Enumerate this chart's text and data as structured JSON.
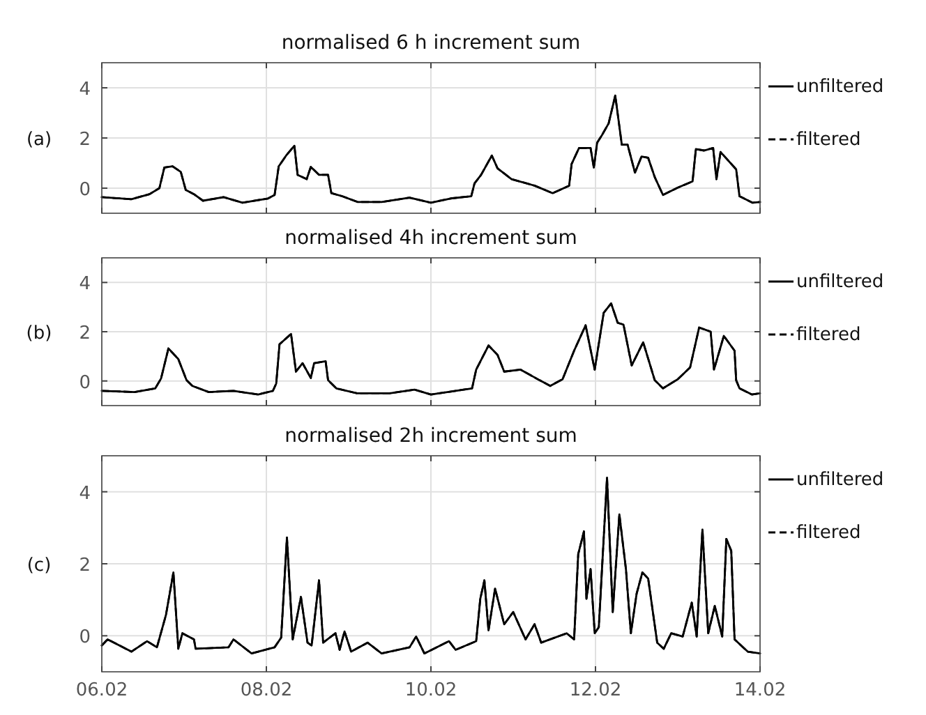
{
  "chart_data": [
    {
      "type": "line",
      "title": "normalised 6 h increment sum",
      "annotations": [
        "(a)"
      ],
      "xlim": [
        "--02-06",
        "--02-14"
      ],
      "xticks": [
        {
          "value": "--02-06",
          "label": null
        },
        {
          "value": "--02-08",
          "label": null
        },
        {
          "value": "--02-10",
          "label": null
        },
        {
          "value": "--02-12",
          "label": null
        },
        {
          "value": "--02-14",
          "label": null
        }
      ],
      "ylim": [
        -1,
        5
      ],
      "yticks": [
        0,
        2,
        4
      ],
      "grid": true,
      "legend": "right",
      "tick_labels": "y",
      "x": [
        "--02-06T00:00",
        "--02-06T08:38",
        "--02-06T13:55",
        "--02-06T16:48",
        "--02-06T18:14",
        "--02-06T20:38",
        "--02-06T23:02",
        "--02-07T00:29",
        "--02-07T02:53",
        "--02-07T05:31",
        "--02-07T11:31",
        "--02-07T17:02",
        "--02-08T00:29",
        "--02-08T02:24",
        "--02-08T03:36",
        "--02-08T05:46",
        "--02-08T08:10",
        "--02-08T09:07",
        "--02-08T11:46",
        "--02-08T12:58",
        "--02-08T15:22",
        "--02-08T18:00",
        "--02-08T18:58",
        "--02-08T22:05",
        "--02-09T02:38",
        "--02-09T09:36",
        "--02-09T17:46",
        "--02-10T00:00",
        "--02-10T05:46",
        "--02-10T11:46",
        "--02-10T12:43",
        "--02-10T14:38",
        "--02-10T17:46",
        "--02-10T19:26",
        "--02-10T23:31",
        "--02-11T06:14",
        "--02-11T11:31",
        "--02-11T16:19",
        "--02-11T17:02",
        "--02-11T19:12",
        "--02-11T22:34",
        "--02-11T23:31",
        "--02-12T00:29",
        "--02-12T01:55",
        "--02-12T03:50",
        "--02-12T05:46",
        "--02-12T07:41",
        "--02-12T09:22",
        "--02-12T11:31",
        "--02-12T13:26",
        "--02-12T15:22",
        "--02-12T17:17",
        "--02-12T19:41",
        "--02-13T00:00",
        "--02-13T04:19",
        "--02-13T05:17",
        "--02-13T07:41",
        "--02-13T10:19",
        "--02-13T11:17",
        "--02-13T12:29",
        "--02-13T17:02",
        "--02-13T18:00",
        "--02-13T21:50",
        "--02-14T00:00"
      ],
      "series": [
        {
          "name": "unfiltered",
          "color": "#000000",
          "line_style": "solid",
          "values": [
            -0.36,
            -0.44,
            -0.24,
            0.0,
            0.82,
            0.87,
            0.65,
            -0.07,
            -0.24,
            -0.5,
            -0.36,
            -0.58,
            -0.41,
            -0.27,
            0.87,
            1.3,
            1.69,
            0.53,
            0.36,
            0.85,
            0.53,
            0.53,
            -0.2,
            -0.32,
            -0.55,
            -0.55,
            -0.38,
            -0.58,
            -0.41,
            -0.32,
            0.19,
            0.53,
            1.3,
            0.79,
            0.36,
            0.1,
            -0.2,
            0.1,
            0.96,
            1.6,
            1.6,
            0.82,
            1.81,
            2.12,
            2.58,
            3.69,
            1.73,
            1.73,
            0.62,
            1.26,
            1.21,
            0.44,
            -0.27,
            0.02,
            0.27,
            1.56,
            1.5,
            1.6,
            0.36,
            1.44,
            0.75,
            -0.32,
            -0.58,
            -0.55
          ]
        },
        {
          "name": "filtered",
          "color": "#000000",
          "line_style": "dashed",
          "values": [
            -0.36,
            -0.44,
            -0.24,
            0.0,
            0.82,
            0.87,
            0.65,
            -0.07,
            -0.24,
            -0.5,
            -0.36,
            -0.58,
            -0.41,
            -0.27,
            0.87,
            1.3,
            1.69,
            0.53,
            0.36,
            0.85,
            0.53,
            0.53,
            -0.2,
            -0.32,
            -0.55,
            -0.55,
            -0.38,
            -0.58,
            -0.41,
            -0.32,
            0.19,
            0.53,
            1.3,
            0.79,
            0.36,
            0.1,
            -0.2,
            0.1,
            0.96,
            1.6,
            1.6,
            0.82,
            1.81,
            2.12,
            2.58,
            3.69,
            1.73,
            1.73,
            0.62,
            1.26,
            1.21,
            0.44,
            -0.27,
            0.02,
            0.27,
            1.56,
            1.5,
            1.6,
            0.36,
            1.44,
            0.75,
            -0.32,
            -0.58,
            -0.55
          ]
        }
      ]
    },
    {
      "type": "line",
      "title": "normalised 4h increment sum",
      "annotations": [
        "(b)"
      ],
      "xlim": [
        "--02-06",
        "--02-14"
      ],
      "xticks": [
        {
          "value": "--02-06",
          "label": null
        },
        {
          "value": "--02-08",
          "label": null
        },
        {
          "value": "--02-10",
          "label": null
        },
        {
          "value": "--02-12",
          "label": null
        },
        {
          "value": "--02-14",
          "label": null
        }
      ],
      "ylim": [
        -1,
        5
      ],
      "yticks": [
        0,
        2,
        4
      ],
      "grid": true,
      "legend": "right",
      "tick_labels": "y",
      "x": [
        "--02-06T00:00",
        "--02-06T09:36",
        "--02-06T15:36",
        "--02-06T17:17",
        "--02-06T19:26",
        "--02-06T22:19",
        "--02-07T00:43",
        "--02-07T02:24",
        "--02-07T07:12",
        "--02-07T14:24",
        "--02-07T21:36",
        "--02-08T01:55",
        "--02-08T02:53",
        "--02-08T03:50",
        "--02-08T07:12",
        "--02-08T08:38",
        "--02-08T10:34",
        "--02-08T12:58",
        "--02-08T13:55",
        "--02-08T17:17",
        "--02-08T18:00",
        "--02-08T20:24",
        "--02-09T02:24",
        "--02-09T12:00",
        "--02-09T19:12",
        "--02-10T00:00",
        "--02-10T07:12",
        "--02-10T12:00",
        "--02-10T13:12",
        "--02-10T16:48",
        "--02-10T19:26",
        "--02-10T21:22",
        "--02-11T02:10",
        "--02-11T07:41",
        "--02-11T10:48",
        "--02-11T14:24",
        "--02-11T17:46",
        "--02-11T21:07",
        "--02-11T23:46",
        "--02-12T02:24",
        "--02-12T04:34",
        "--02-12T06:29",
        "--02-12T08:10",
        "--02-12T10:34",
        "--02-12T13:55",
        "--02-12T17:17",
        "--02-12T19:41",
        "--02-13T00:00",
        "--02-13T03:36",
        "--02-13T06:14",
        "--02-13T09:36",
        "--02-13T10:34",
        "--02-13T13:26",
        "--02-13T16:34",
        "--02-13T17:02",
        "--02-13T18:00",
        "--02-13T21:36",
        "--02-14T00:00"
      ],
      "series": [
        {
          "name": "unfiltered",
          "color": "#000000",
          "line_style": "solid",
          "values": [
            -0.4,
            -0.45,
            -0.3,
            0.1,
            1.32,
            0.89,
            0.03,
            -0.2,
            -0.45,
            -0.4,
            -0.55,
            -0.4,
            -0.1,
            1.49,
            1.91,
            0.38,
            0.72,
            0.12,
            0.72,
            0.8,
            0.03,
            -0.3,
            -0.5,
            -0.5,
            -0.35,
            -0.55,
            -0.4,
            -0.3,
            0.46,
            1.44,
            1.06,
            0.38,
            0.46,
            0.03,
            -0.2,
            0.07,
            1.23,
            2.26,
            0.46,
            2.77,
            3.15,
            2.36,
            2.29,
            0.63,
            1.57,
            0.03,
            -0.3,
            0.07,
            0.55,
            2.17,
            2.0,
            0.46,
            1.83,
            1.23,
            0.03,
            -0.3,
            -0.55,
            -0.5
          ]
        },
        {
          "name": "filtered",
          "color": "#000000",
          "line_style": "dashed",
          "values": [
            -0.4,
            -0.45,
            -0.3,
            0.1,
            1.32,
            0.89,
            0.03,
            -0.2,
            -0.45,
            -0.4,
            -0.55,
            -0.4,
            -0.1,
            1.49,
            1.91,
            0.38,
            0.72,
            0.12,
            0.72,
            0.8,
            0.03,
            -0.3,
            -0.5,
            -0.5,
            -0.35,
            -0.55,
            -0.4,
            -0.3,
            0.46,
            1.44,
            1.06,
            0.38,
            0.46,
            0.03,
            -0.2,
            0.07,
            1.23,
            2.26,
            0.46,
            2.77,
            3.15,
            2.36,
            2.29,
            0.63,
            1.57,
            0.03,
            -0.3,
            0.07,
            0.55,
            2.17,
            2.0,
            0.46,
            1.83,
            1.23,
            0.03,
            -0.3,
            -0.55,
            -0.5
          ]
        }
      ]
    },
    {
      "type": "line",
      "title": "normalised 2h increment sum",
      "annotations": [
        "(c)"
      ],
      "xlim": [
        "--02-06",
        "--02-14"
      ],
      "xticks": [
        {
          "value": "--02-06",
          "label": "06.02"
        },
        {
          "value": "--02-08",
          "label": "08.02"
        },
        {
          "value": "--02-10",
          "label": "10.02"
        },
        {
          "value": "--02-12",
          "label": "12.02"
        },
        {
          "value": "--02-14",
          "label": "14.02"
        }
      ],
      "ylim": [
        -1,
        5
      ],
      "yticks": [
        0,
        2,
        4
      ],
      "grid": true,
      "legend": "right",
      "x": [
        "--02-06T00:00",
        "--02-06T01:41",
        "--02-06T08:38",
        "--02-06T13:12",
        "--02-06T16:05",
        "--02-06T18:43",
        "--02-06T20:53",
        "--02-06T22:19",
        "--02-06T23:31",
        "--02-07T02:53",
        "--02-07T03:22",
        "--02-07T12:58",
        "--02-07T14:24",
        "--02-07T19:41",
        "--02-08T02:24",
        "--02-08T04:19",
        "--02-08T06:00",
        "--02-08T07:41",
        "--02-08T10:05",
        "--02-08T12:00",
        "--02-08T13:12",
        "--02-08T15:22",
        "--02-08T16:34",
        "--02-08T20:10",
        "--02-08T21:22",
        "--02-08T22:48",
        "--02-09T00:43",
        "--02-09T05:31",
        "--02-09T09:36",
        "--02-09T17:46",
        "--02-09T19:41",
        "--02-09T22:05",
        "--02-10T05:17",
        "--02-10T07:12",
        "--02-10T13:12",
        "--02-10T14:24",
        "--02-10T15:36",
        "--02-10T16:48",
        "--02-10T18:43",
        "--02-10T21:22",
        "--02-11T00:00",
        "--02-11T03:36",
        "--02-11T06:14",
        "--02-11T08:10",
        "--02-11T15:36",
        "--02-11T17:46",
        "--02-11T18:58",
        "--02-11T20:38",
        "--02-11T21:22",
        "--02-11T22:34",
        "--02-11T23:46",
        "--02-12T00:58",
        "--02-12T03:22",
        "--02-12T05:02",
        "--02-12T06:58",
        "--02-12T08:53",
        "--02-12T10:19",
        "--02-12T12:00",
        "--02-12T13:41",
        "--02-12T15:22",
        "--02-12T18:00",
        "--02-12T19:55",
        "--02-12T22:05",
        "--02-13T01:26",
        "--02-13T04:05",
        "--02-13T05:31",
        "--02-13T07:12",
        "--02-13T08:53",
        "--02-13T10:48",
        "--02-13T12:58",
        "--02-13T14:10",
        "--02-13T15:36",
        "--02-13T16:34",
        "--02-13T20:24",
        "--02-14T00:00"
      ],
      "series": [
        {
          "name": "unfiltered",
          "color": "#000000",
          "line_style": "solid",
          "values": [
            -0.27,
            -0.1,
            -0.44,
            -0.15,
            -0.32,
            0.58,
            1.76,
            -0.36,
            0.07,
            -0.1,
            -0.36,
            -0.32,
            -0.1,
            -0.49,
            -0.32,
            -0.05,
            2.73,
            -0.1,
            1.08,
            -0.19,
            -0.27,
            1.54,
            -0.19,
            0.07,
            -0.39,
            0.12,
            -0.44,
            -0.19,
            -0.49,
            -0.32,
            -0.02,
            -0.49,
            -0.15,
            -0.39,
            -0.15,
            1.03,
            1.54,
            0.15,
            1.31,
            0.32,
            0.66,
            -0.1,
            0.32,
            -0.19,
            0.07,
            -0.1,
            2.27,
            2.9,
            1.03,
            1.85,
            0.07,
            0.24,
            4.39,
            0.66,
            3.37,
            1.85,
            0.07,
            1.17,
            1.76,
            1.59,
            -0.19,
            -0.36,
            0.07,
            -0.02,
            0.92,
            -0.02,
            2.95,
            0.07,
            0.83,
            -0.02,
            2.69,
            2.36,
            -0.1,
            -0.44,
            -0.49
          ]
        },
        {
          "name": "filtered",
          "color": "#000000",
          "line_style": "dashed",
          "values": [
            -0.27,
            -0.1,
            -0.44,
            -0.15,
            -0.32,
            0.58,
            1.76,
            -0.36,
            0.07,
            -0.1,
            -0.36,
            -0.32,
            -0.1,
            -0.49,
            -0.32,
            -0.05,
            2.73,
            -0.1,
            1.08,
            -0.19,
            -0.27,
            1.54,
            -0.19,
            0.07,
            -0.39,
            0.12,
            -0.44,
            -0.19,
            -0.49,
            -0.32,
            -0.02,
            -0.49,
            -0.15,
            -0.39,
            -0.15,
            1.03,
            1.54,
            0.15,
            1.31,
            0.32,
            0.66,
            -0.1,
            0.32,
            -0.19,
            0.07,
            -0.1,
            2.27,
            2.9,
            1.03,
            1.85,
            0.07,
            0.24,
            4.39,
            0.66,
            3.37,
            1.85,
            0.07,
            1.17,
            1.76,
            1.59,
            -0.19,
            -0.36,
            0.07,
            -0.02,
            0.92,
            -0.02,
            2.95,
            0.07,
            0.83,
            -0.02,
            2.69,
            2.36,
            -0.1,
            -0.44,
            -0.49
          ]
        }
      ]
    }
  ]
}
